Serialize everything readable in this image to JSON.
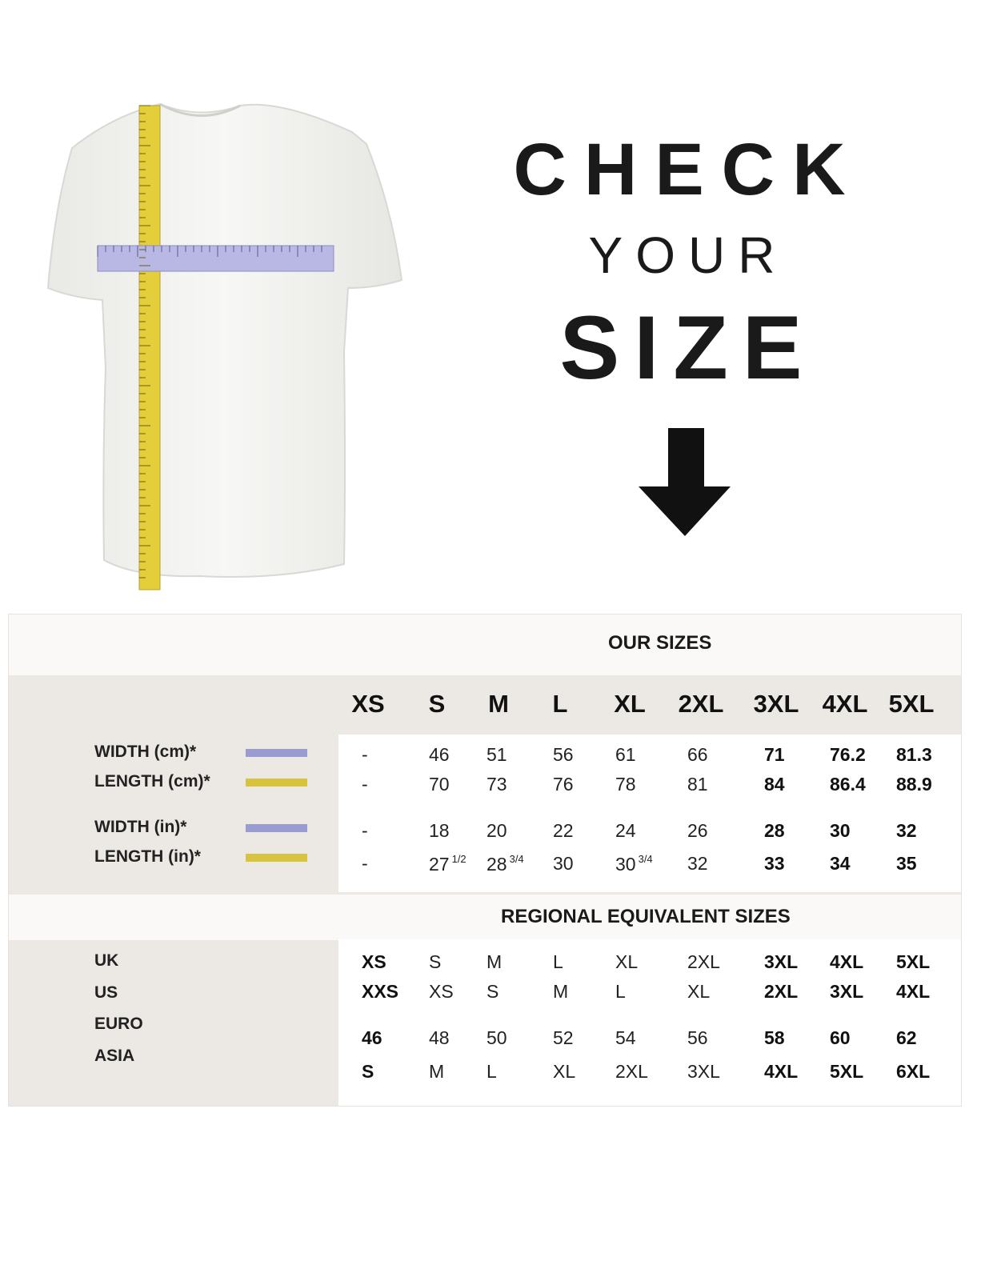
{
  "heading": {
    "line1": "CHECK",
    "line2": "YOUR",
    "line3": "SIZE"
  },
  "icons": {
    "arrow": "arrow-down-icon",
    "shirt": "t-shirt-with-measuring-tapes"
  },
  "colors": {
    "width_tape": "#a9a8dc",
    "length_tape": "#d9c43a",
    "panel_gray": "#ece8e4"
  },
  "our_sizes": {
    "title": "OUR SIZES",
    "sizes": [
      "XS",
      "S",
      "M",
      "L",
      "XL",
      "2XL",
      "3XL",
      "4XL",
      "5XL"
    ],
    "rows": [
      {
        "label": "WIDTH (cm)*",
        "swatch": "#9a9bd0",
        "values": [
          "-",
          "46",
          "51",
          "56",
          "61",
          "66",
          "71",
          "76.2",
          "81.3"
        ]
      },
      {
        "label": "LENGTH (cm)*",
        "swatch": "#d8c43c",
        "values": [
          "-",
          "70",
          "73",
          "76",
          "78",
          "81",
          "84",
          "86.4",
          "88.9"
        ]
      },
      {
        "label": "WIDTH (in)*",
        "swatch": "#9a9bd0",
        "values": [
          "-",
          "18",
          "20",
          "22",
          "24",
          "26",
          "28",
          "30",
          "32"
        ]
      },
      {
        "label": "LENGTH (in)*",
        "swatch": "#d8c43c",
        "values": [
          "-",
          "27 1/2",
          "28 3/4",
          "30",
          "30 3/4",
          "32",
          "33",
          "34",
          "35"
        ]
      }
    ]
  },
  "regional": {
    "title": "REGIONAL EQUIVALENT SIZES",
    "rows": [
      {
        "label": "UK",
        "values": [
          "XS",
          "S",
          "M",
          "L",
          "XL",
          "2XL",
          "3XL",
          "4XL",
          "5XL"
        ]
      },
      {
        "label": "US",
        "values": [
          "XXS",
          "XS",
          "S",
          "M",
          "L",
          "XL",
          "2XL",
          "3XL",
          "4XL"
        ]
      },
      {
        "label": "EURO",
        "values": [
          "46",
          "48",
          "50",
          "52",
          "54",
          "56",
          "58",
          "60",
          "62"
        ]
      },
      {
        "label": "ASIA",
        "values": [
          "S",
          "M",
          "L",
          "XL",
          "2XL",
          "3XL",
          "4XL",
          "5XL",
          "6XL"
        ]
      }
    ]
  }
}
